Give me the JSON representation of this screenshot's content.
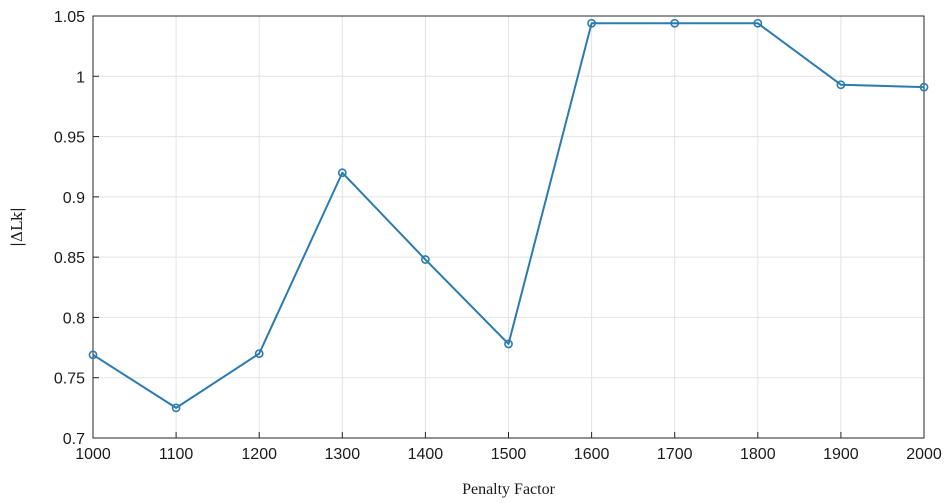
{
  "chart_data": {
    "type": "line",
    "title": "",
    "xlabel": "Penalty Factor",
    "ylabel": "|ΔLk|",
    "x": [
      1000,
      1100,
      1200,
      1300,
      1400,
      1500,
      1600,
      1700,
      1800,
      1900,
      2000
    ],
    "series": [
      {
        "values": [
          0.769,
          0.725,
          0.77,
          0.92,
          0.848,
          0.778,
          1.044,
          1.044,
          1.044,
          0.993,
          0.991
        ],
        "color": "#2b7bb0",
        "marker": "circle"
      }
    ],
    "xlim": [
      1000,
      2000
    ],
    "ylim": [
      0.7,
      1.05
    ],
    "xticks": [
      "1000",
      "1100",
      "1200",
      "1300",
      "1400",
      "1500",
      "1600",
      "1700",
      "1800",
      "1900",
      "2000"
    ],
    "yticks": [
      "0.7",
      "0.75",
      "0.8",
      "0.85",
      "0.9",
      "0.95",
      "1",
      "1.05"
    ],
    "grid": true,
    "legend": "none"
  }
}
